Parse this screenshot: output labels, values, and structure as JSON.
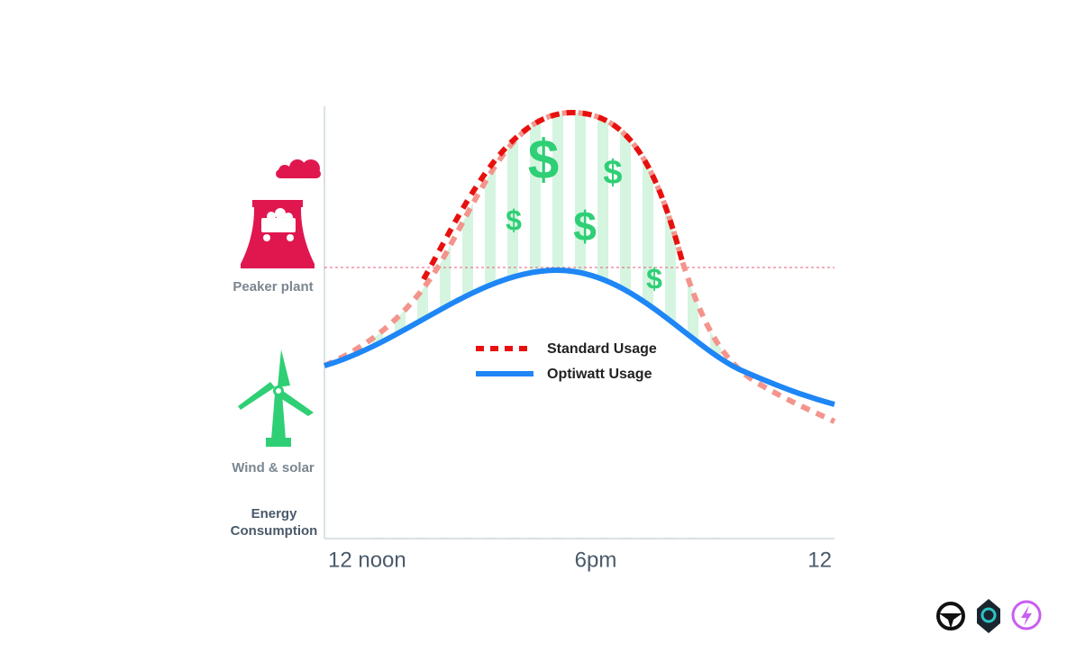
{
  "diagram": {
    "y_axis_label": [
      "Energy",
      "Consumption"
    ],
    "levels": {
      "peaker_plant": "Peaker plant",
      "wind_solar": "Wind & solar"
    },
    "x_labels": [
      "12 noon",
      "6pm",
      "12"
    ],
    "legend": [
      "Standard Usage",
      "Optiwatt Usage"
    ],
    "savings_symbol": "$"
  }
}
